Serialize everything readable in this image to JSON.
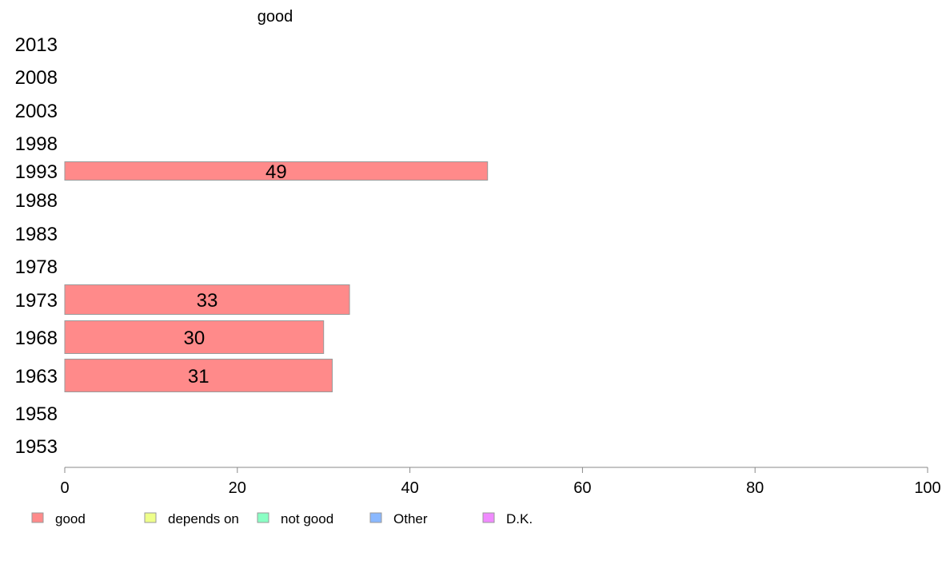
{
  "chart_data": {
    "type": "bar",
    "orientation": "horizontal",
    "title": "good",
    "categories": [
      "1953",
      "1958",
      "1963",
      "1968",
      "1973",
      "1978",
      "1983",
      "1988",
      "1993",
      "1998",
      "2003",
      "2008",
      "2013"
    ],
    "series": [
      {
        "name": "good",
        "color": "#ff8a8a",
        "values": [
          null,
          null,
          31,
          30,
          33,
          null,
          null,
          null,
          49,
          null,
          null,
          null,
          null
        ]
      }
    ],
    "xlim": [
      0,
      100
    ],
    "xticks": [
      0,
      20,
      40,
      60,
      80,
      100
    ],
    "grid": false,
    "legend": {
      "placement": "bottom",
      "entries": [
        {
          "label": "good",
          "color": "#ff8a8a"
        },
        {
          "label": "depends on",
          "color": "#eeff8a"
        },
        {
          "label": "not good",
          "color": "#8affc4"
        },
        {
          "label": "Other",
          "color": "#8ab8ff"
        },
        {
          "label": "D.K.",
          "color": "#f08aff"
        }
      ]
    }
  }
}
